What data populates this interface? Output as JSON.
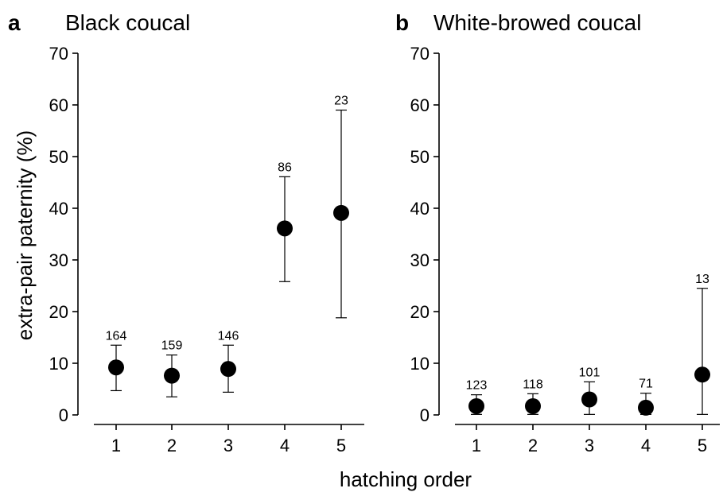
{
  "xlabel": "hatching order",
  "ylabel": "extra-pair paternity (%)",
  "chart_data": [
    {
      "type": "scatter",
      "panel": "a",
      "title": "Black coucal",
      "xlabel": "hatching order",
      "ylabel": "extra-pair paternity (%)",
      "x": [
        1,
        2,
        3,
        4,
        5
      ],
      "xlim": [
        0.5,
        5.5
      ],
      "ylim": [
        0,
        70
      ],
      "yticks": [
        0,
        10,
        20,
        30,
        40,
        50,
        60,
        70
      ],
      "xticks": [
        1,
        2,
        3,
        4,
        5
      ],
      "values": [
        9.2,
        7.6,
        8.9,
        36.1,
        39.1
      ],
      "err_low": [
        4.7,
        3.5,
        4.4,
        25.8,
        18.8
      ],
      "err_high": [
        13.5,
        11.6,
        13.5,
        46.1,
        59.0
      ],
      "n_labels": [
        "164",
        "159",
        "146",
        "86",
        "23"
      ],
      "grid": false,
      "legend": "none"
    },
    {
      "type": "scatter",
      "panel": "b",
      "title": "White-browed coucal",
      "xlabel": "hatching order",
      "ylabel": "",
      "x": [
        1,
        2,
        3,
        4,
        5
      ],
      "xlim": [
        0.5,
        5.5
      ],
      "ylim": [
        0,
        70
      ],
      "yticks": [
        0,
        10,
        20,
        30,
        40,
        50,
        60,
        70
      ],
      "xticks": [
        1,
        2,
        3,
        4,
        5
      ],
      "values": [
        1.7,
        1.7,
        3.0,
        1.4,
        7.8
      ],
      "err_low": [
        0.1,
        0.1,
        0.1,
        0.1,
        0.1
      ],
      "err_high": [
        3.9,
        4.1,
        6.4,
        4.2,
        24.5
      ],
      "n_labels": [
        "123",
        "118",
        "101",
        "71",
        "13"
      ],
      "grid": false,
      "legend": "none"
    }
  ]
}
